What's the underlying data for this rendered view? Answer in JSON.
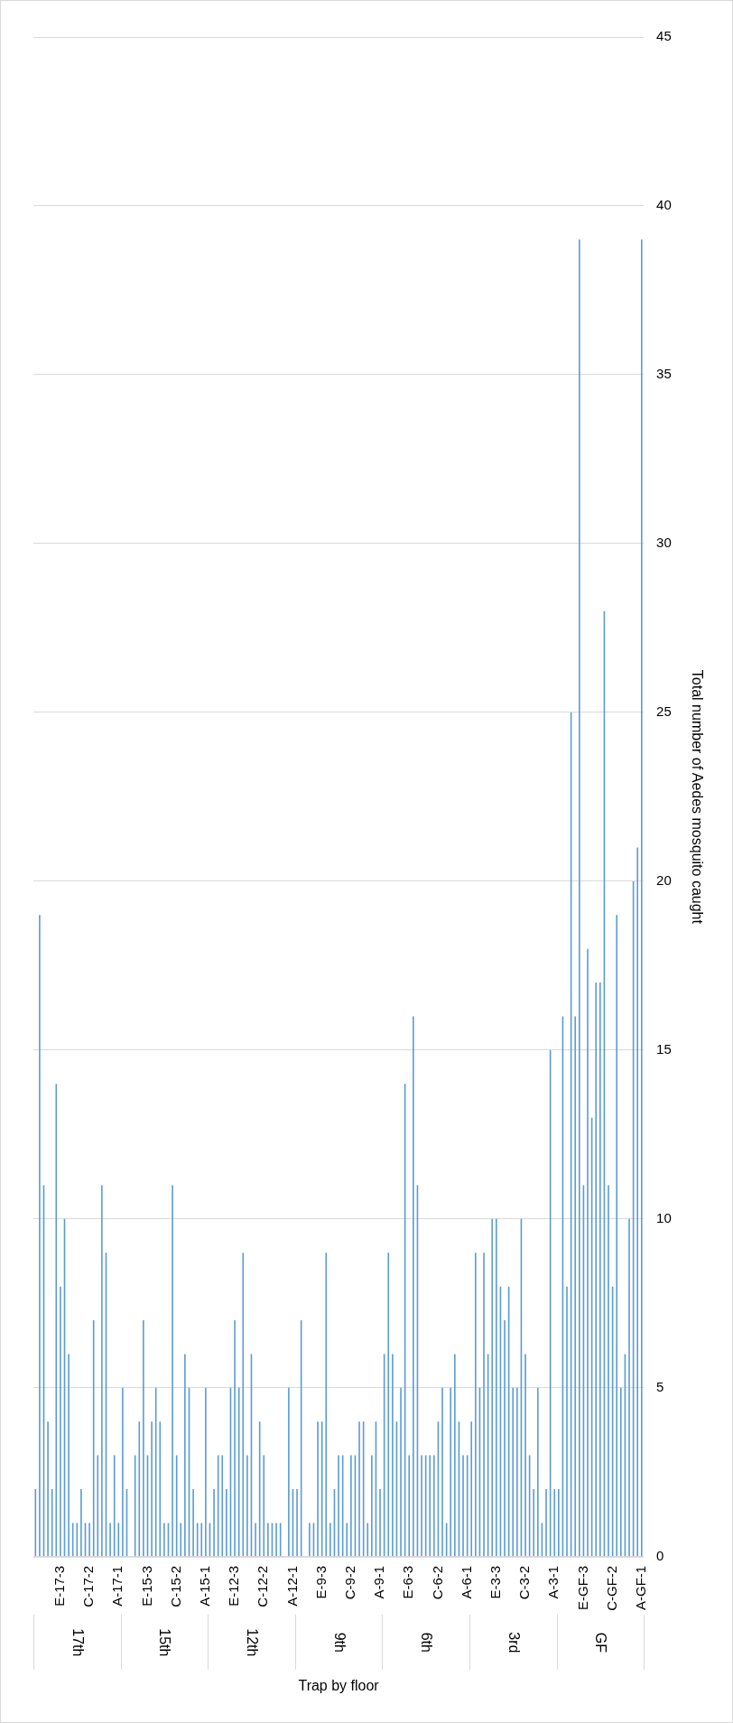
{
  "chart_data": {
    "type": "bar",
    "xlabel": "Trap by floor",
    "ylabel": "Total number of Aedes mosquito caught",
    "categories": [
      null,
      null,
      null,
      null,
      null,
      null,
      "E-17-3",
      null,
      null,
      null,
      null,
      null,
      null,
      "C-17-2",
      null,
      null,
      null,
      null,
      null,
      null,
      "A-17-1",
      null,
      null,
      null,
      null,
      null,
      null,
      "E-15-3",
      null,
      null,
      null,
      null,
      null,
      null,
      "C-15-2",
      null,
      null,
      null,
      null,
      null,
      null,
      "A-15-1",
      null,
      null,
      null,
      null,
      null,
      null,
      "E-12-3",
      null,
      null,
      null,
      null,
      null,
      null,
      "C-12-2",
      null,
      null,
      null,
      null,
      null,
      null,
      "A-12-1",
      null,
      null,
      null,
      null,
      null,
      null,
      "E-9-3",
      null,
      null,
      null,
      null,
      null,
      null,
      "C-9-2",
      null,
      null,
      null,
      null,
      null,
      null,
      "A-9-1",
      null,
      null,
      null,
      null,
      null,
      null,
      "E-6-3",
      null,
      null,
      null,
      null,
      null,
      null,
      "C-6-2",
      null,
      null,
      null,
      null,
      null,
      null,
      "A-6-1",
      null,
      null,
      null,
      null,
      null,
      null,
      "E-3-3",
      null,
      null,
      null,
      null,
      null,
      null,
      "C-3-2",
      null,
      null,
      null,
      null,
      null,
      null,
      "A-3-1",
      null,
      null,
      null,
      null,
      null,
      null,
      "E-GF-3",
      null,
      null,
      null,
      null,
      null,
      null,
      "C-GF-2",
      null,
      null,
      null,
      null,
      null,
      null,
      "A-GF-1"
    ],
    "values": [
      2,
      19,
      11,
      4,
      2,
      14,
      8,
      10,
      6,
      1,
      1,
      2,
      1,
      1,
      7,
      3,
      11,
      9,
      1,
      3,
      1,
      5,
      2,
      0,
      3,
      4,
      7,
      3,
      4,
      5,
      4,
      1,
      1,
      11,
      3,
      1,
      6,
      5,
      2,
      1,
      1,
      5,
      1,
      2,
      3,
      3,
      2,
      5,
      7,
      5,
      9,
      3,
      6,
      1,
      4,
      3,
      1,
      1,
      1,
      1,
      0,
      5,
      2,
      2,
      7,
      0,
      1,
      1,
      4,
      4,
      9,
      1,
      2,
      3,
      3,
      1,
      3,
      3,
      4,
      4,
      1,
      3,
      4,
      2,
      6,
      9,
      6,
      4,
      5,
      14,
      3,
      16,
      11,
      3,
      3,
      3,
      3,
      4,
      5,
      1,
      5,
      6,
      4,
      3,
      3,
      4,
      9,
      5,
      9,
      6,
      10,
      10,
      8,
      7,
      8,
      5,
      5,
      10,
      6,
      3,
      2,
      5,
      1,
      2,
      15,
      2,
      2,
      16,
      8,
      25,
      16,
      39,
      11,
      18,
      13,
      17,
      17,
      28,
      11,
      8,
      19,
      5,
      6,
      10,
      20,
      21,
      39
    ],
    "color": "#5b9bd5",
    "ylim": [
      0,
      45
    ],
    "yticks": [
      0,
      5,
      10,
      15,
      20,
      25,
      30,
      35,
      40,
      45
    ],
    "grid": "y",
    "annotations": [
      "17th",
      "15th",
      "12th",
      "9th",
      "6th",
      "3rd",
      "GF"
    ]
  }
}
